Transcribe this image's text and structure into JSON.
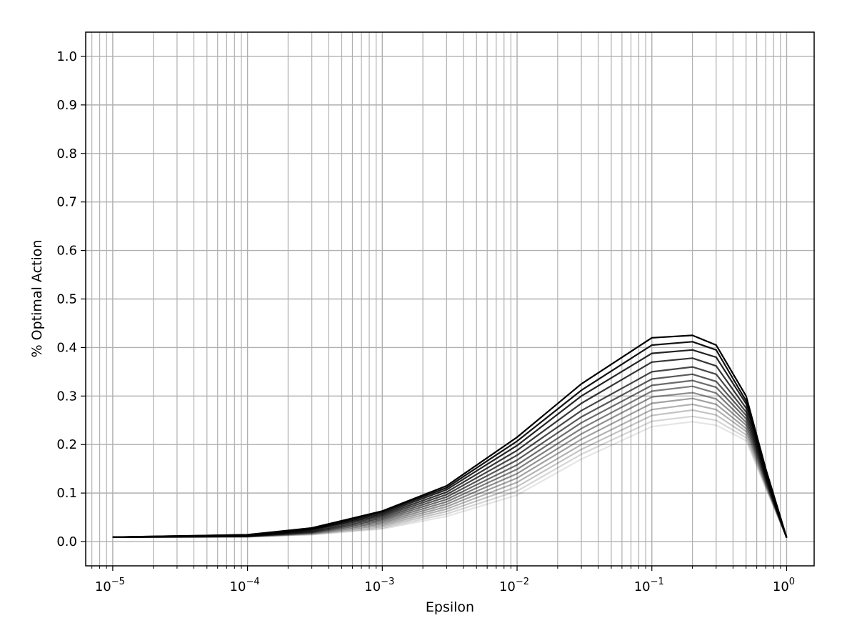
{
  "chart_data": {
    "type": "line",
    "title": "",
    "xlabel": "Epsilon",
    "ylabel": "% Optimal Action",
    "x_scale": "log",
    "xlim": [
      6.3e-06,
      1.6
    ],
    "ylim": [
      -0.05,
      1.05
    ],
    "grid": {
      "major": true,
      "minor_x": true
    },
    "x_ticks": [
      {
        "value": 1e-05,
        "base": "10",
        "exp": "−5"
      },
      {
        "value": 0.0001,
        "base": "10",
        "exp": "−4"
      },
      {
        "value": 0.001,
        "base": "10",
        "exp": "−3"
      },
      {
        "value": 0.01,
        "base": "10",
        "exp": "−2"
      },
      {
        "value": 0.1,
        "base": "10",
        "exp": "−1"
      },
      {
        "value": 1,
        "base": "10",
        "exp": "0"
      }
    ],
    "y_ticks": [
      {
        "value": 0.0,
        "label": "0.0"
      },
      {
        "value": 0.1,
        "label": "0.1"
      },
      {
        "value": 0.2,
        "label": "0.2"
      },
      {
        "value": 0.3,
        "label": "0.3"
      },
      {
        "value": 0.4,
        "label": "0.4"
      },
      {
        "value": 0.5,
        "label": "0.5"
      },
      {
        "value": 0.6,
        "label": "0.6"
      },
      {
        "value": 0.7,
        "label": "0.7"
      },
      {
        "value": 0.8,
        "label": "0.8"
      },
      {
        "value": 0.9,
        "label": "0.9"
      },
      {
        "value": 1.0,
        "label": "1.0"
      }
    ],
    "x": [
      1e-05,
      0.0001,
      0.0003,
      0.001,
      0.003,
      0.01,
      0.03,
      0.1,
      0.2,
      0.3,
      0.5,
      0.7,
      1.0
    ],
    "series_color": "#000000",
    "series": [
      {
        "opacity": 1.0,
        "values": [
          0.009,
          0.014,
          0.028,
          0.063,
          0.115,
          0.215,
          0.325,
          0.42,
          0.425,
          0.405,
          0.3,
          0.15,
          0.008
        ]
      },
      {
        "opacity": 0.93,
        "values": [
          0.009,
          0.014,
          0.027,
          0.061,
          0.111,
          0.207,
          0.312,
          0.405,
          0.412,
          0.395,
          0.29,
          0.146,
          0.008
        ]
      },
      {
        "opacity": 0.86,
        "values": [
          0.009,
          0.013,
          0.026,
          0.058,
          0.107,
          0.198,
          0.3,
          0.388,
          0.395,
          0.38,
          0.284,
          0.143,
          0.008
        ]
      },
      {
        "opacity": 0.79,
        "values": [
          0.009,
          0.013,
          0.025,
          0.055,
          0.102,
          0.188,
          0.285,
          0.37,
          0.378,
          0.362,
          0.275,
          0.14,
          0.008
        ]
      },
      {
        "opacity": 0.72,
        "values": [
          0.009,
          0.012,
          0.024,
          0.052,
          0.097,
          0.178,
          0.27,
          0.35,
          0.36,
          0.345,
          0.267,
          0.137,
          0.008
        ]
      },
      {
        "opacity": 0.65,
        "values": [
          0.009,
          0.012,
          0.022,
          0.049,
          0.092,
          0.168,
          0.257,
          0.335,
          0.345,
          0.33,
          0.26,
          0.134,
          0.008
        ]
      },
      {
        "opacity": 0.58,
        "values": [
          0.009,
          0.012,
          0.021,
          0.046,
          0.087,
          0.158,
          0.245,
          0.322,
          0.332,
          0.318,
          0.253,
          0.131,
          0.008
        ]
      },
      {
        "opacity": 0.51,
        "values": [
          0.009,
          0.011,
          0.02,
          0.043,
          0.082,
          0.149,
          0.233,
          0.31,
          0.32,
          0.306,
          0.246,
          0.128,
          0.008
        ]
      },
      {
        "opacity": 0.44,
        "values": [
          0.009,
          0.011,
          0.019,
          0.04,
          0.077,
          0.14,
          0.222,
          0.298,
          0.307,
          0.294,
          0.24,
          0.125,
          0.008
        ]
      },
      {
        "opacity": 0.37,
        "values": [
          0.009,
          0.011,
          0.018,
          0.037,
          0.072,
          0.131,
          0.211,
          0.285,
          0.295,
          0.283,
          0.233,
          0.122,
          0.008
        ]
      },
      {
        "opacity": 0.3,
        "values": [
          0.009,
          0.01,
          0.017,
          0.034,
          0.067,
          0.122,
          0.2,
          0.272,
          0.283,
          0.272,
          0.227,
          0.119,
          0.008
        ]
      },
      {
        "opacity": 0.23,
        "values": [
          0.009,
          0.01,
          0.016,
          0.031,
          0.062,
          0.113,
          0.19,
          0.26,
          0.271,
          0.261,
          0.22,
          0.116,
          0.008
        ]
      },
      {
        "opacity": 0.16,
        "values": [
          0.009,
          0.01,
          0.015,
          0.028,
          0.057,
          0.104,
          0.18,
          0.248,
          0.258,
          0.25,
          0.214,
          0.113,
          0.008
        ]
      },
      {
        "opacity": 0.1,
        "values": [
          0.009,
          0.01,
          0.014,
          0.026,
          0.052,
          0.096,
          0.17,
          0.237,
          0.247,
          0.24,
          0.208,
          0.11,
          0.008
        ]
      }
    ]
  }
}
